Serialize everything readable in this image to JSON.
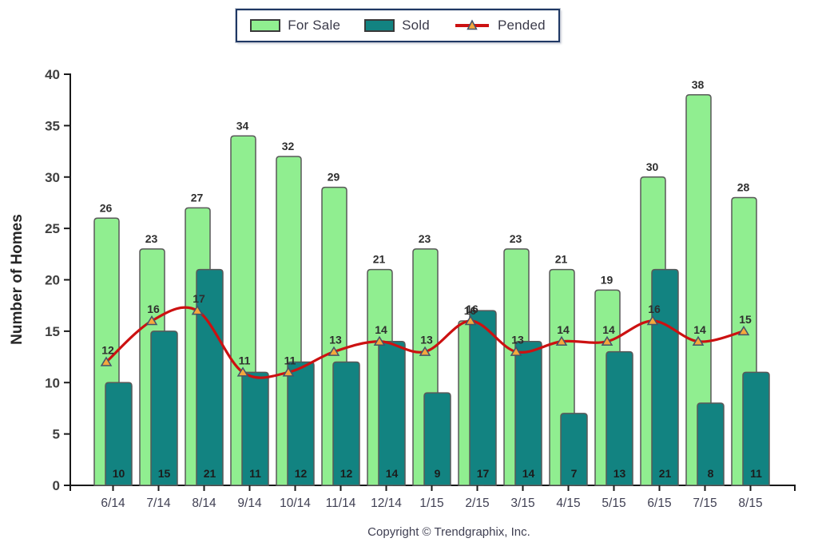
{
  "legend": {
    "items": [
      {
        "label": "For Sale",
        "symbol": "bar-swatch",
        "color": "#90EE90"
      },
      {
        "label": "Sold",
        "symbol": "bar-swatch",
        "color": "#128381"
      },
      {
        "label": "Pended",
        "symbol": "line-marker",
        "color": "#CC1111",
        "marker_color": "#F5A83C"
      }
    ]
  },
  "y_axis": {
    "title": "Number of Homes",
    "ticks": [
      0,
      5,
      10,
      15,
      20,
      25,
      30,
      35,
      40
    ]
  },
  "footer": {
    "copyright": "Copyright © Trendgraphix, Inc."
  },
  "colors": {
    "for_sale_fill": "#90EE90",
    "sold_fill": "#128381",
    "bar_border": "#595959",
    "pended_line": "#CC1111",
    "pended_marker_fill": "#F5A83C",
    "pended_marker_border": "#44546A",
    "axis": "#1a1a1a",
    "tick_label": "#404040",
    "value_label": "#2e2e2e",
    "legend_border": "#1F3864"
  },
  "chart_data": {
    "type": "bar",
    "title": "",
    "xlabel": "",
    "ylabel": "Number of Homes",
    "ylim": [
      0,
      40
    ],
    "y_tick_step": 5,
    "grid": false,
    "legend_position": "top",
    "categories": [
      "6/14",
      "7/14",
      "8/14",
      "9/14",
      "10/14",
      "11/14",
      "12/14",
      "1/15",
      "2/15",
      "3/15",
      "4/15",
      "5/15",
      "6/15",
      "7/15",
      "8/15"
    ],
    "series": [
      {
        "name": "For Sale",
        "kind": "bar",
        "color": "#90EE90",
        "values": [
          26,
          23,
          27,
          34,
          32,
          29,
          21,
          23,
          16,
          23,
          21,
          19,
          30,
          38,
          28
        ]
      },
      {
        "name": "Sold",
        "kind": "bar",
        "color": "#128381",
        "values": [
          10,
          15,
          21,
          11,
          12,
          12,
          14,
          9,
          17,
          14,
          7,
          13,
          21,
          8,
          11
        ]
      },
      {
        "name": "Pended",
        "kind": "line",
        "color": "#CC1111",
        "values": [
          12,
          16,
          17,
          11,
          11,
          13,
          14,
          13,
          16,
          13,
          14,
          14,
          16,
          14,
          15
        ]
      }
    ]
  }
}
